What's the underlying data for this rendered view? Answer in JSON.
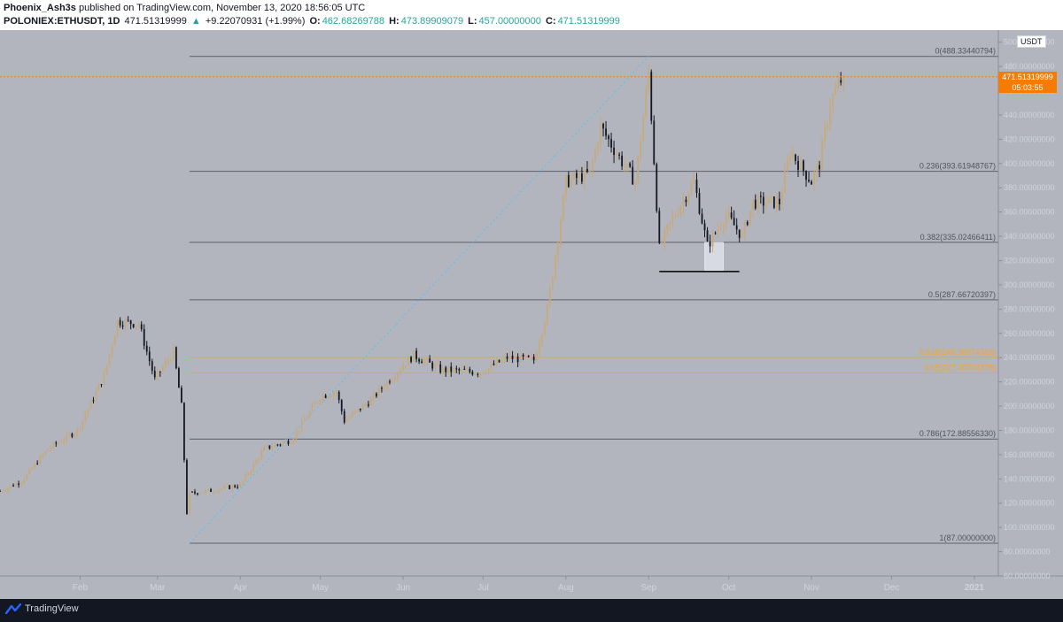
{
  "header": {
    "author": "Phoenix_Ash3s",
    "published_text": "published on TradingView.com, November 13, 2020 18:56:05 UTC",
    "symbol": "POLONIEX:ETHUSDT, 1D",
    "last": "471.51319999",
    "change": "+9.22070931 (+1.99%)",
    "open_label": "O:",
    "open": "462.68269788",
    "high_label": "H:",
    "high": "473.89909079",
    "low_label": "L:",
    "low": "457.00000000",
    "close_label": "C:",
    "close": "471.51319999"
  },
  "currency": "USDT",
  "price_tag": {
    "price": "471.51319999",
    "countdown": "05:03:55"
  },
  "footer": {
    "brand": "TradingView"
  },
  "colors": {
    "background": "#b2b5be",
    "up": "#c8a97a",
    "down": "#131722",
    "fib_line": "#5d606b",
    "fib_golden": "#f5a623",
    "price_line": "#f57c00",
    "trend_line": "#4fc3f7"
  },
  "chart_data": {
    "type": "candlestick",
    "y_axis": {
      "ylim": [
        60,
        510
      ],
      "ticks": [
        "500.00000000",
        "480.00000000",
        "460.00000000",
        "440.00000000",
        "420.00000000",
        "400.00000000",
        "380.00000000",
        "360.00000000",
        "340.00000000",
        "320.00000000",
        "300.00000000",
        "280.00000000",
        "260.00000000",
        "240.00000000",
        "220.00000000",
        "200.00000000",
        "180.00000000",
        "160.00000000",
        "140.00000000",
        "120.00000000",
        "100.00000000",
        "80.00000000",
        "60.00000000"
      ]
    },
    "x_axis": {
      "ticks": [
        {
          "label": "Feb",
          "date": "2020-02-01"
        },
        {
          "label": "Mar",
          "date": "2020-03-01"
        },
        {
          "label": "Apr",
          "date": "2020-04-01"
        },
        {
          "label": "May",
          "date": "2020-05-01"
        },
        {
          "label": "Jun",
          "date": "2020-06-01"
        },
        {
          "label": "Jul",
          "date": "2020-07-01"
        },
        {
          "label": "Aug",
          "date": "2020-08-01"
        },
        {
          "label": "Sep",
          "date": "2020-09-01"
        },
        {
          "label": "Oct",
          "date": "2020-10-01"
        },
        {
          "label": "Nov",
          "date": "2020-11-01"
        },
        {
          "label": "Dec",
          "date": "2020-12-01"
        },
        {
          "label": "2021",
          "date": "2021-01-01"
        }
      ],
      "xlim": [
        "2020-01-02",
        "2021-01-10"
      ]
    },
    "fib_levels": [
      {
        "label": "0(488.33440794)",
        "value": 488.33440794,
        "golden": false
      },
      {
        "label": "0.236(393.61948767)",
        "value": 393.61948767,
        "golden": false
      },
      {
        "label": "0.382(335.02466411)",
        "value": 335.02466411,
        "golden": false
      },
      {
        "label": "0.5(287.66720397)",
        "value": 287.66720397,
        "golden": false
      },
      {
        "label": "0.618(240.30974383)",
        "value": 240.30974383,
        "golden": true
      },
      {
        "label": "0.65(227.46704378)",
        "value": 227.46704378,
        "golden": true
      },
      {
        "label": "0.786(172.88556330)",
        "value": 172.8855633,
        "golden": false
      },
      {
        "label": "1(87.00000000)",
        "value": 87.0,
        "golden": false
      }
    ],
    "fib_range": {
      "start_date": "2020-03-13",
      "end_date": "2021-01-10"
    },
    "trend_line": {
      "from": [
        "2020-03-13",
        87
      ],
      "to": [
        "2020-09-01",
        488.33
      ]
    },
    "support_line": {
      "from": [
        "2020-09-05",
        311
      ],
      "to": [
        "2020-10-05",
        311
      ]
    },
    "highlight_box": {
      "from": [
        "2020-09-22",
        312
      ],
      "to": [
        "2020-09-29",
        335
      ]
    },
    "last_price": 471.51319999,
    "keypoints": [
      [
        "2020-01-02",
        130
      ],
      [
        "2020-01-10",
        138
      ],
      [
        "2020-01-20",
        165
      ],
      [
        "2020-01-31",
        180
      ],
      [
        "2020-02-10",
        225
      ],
      [
        "2020-02-15",
        270
      ],
      [
        "2020-02-23",
        268
      ],
      [
        "2020-02-29",
        222
      ],
      [
        "2020-03-07",
        245
      ],
      [
        "2020-03-10",
        200
      ],
      [
        "2020-03-12",
        112
      ],
      [
        "2020-03-13",
        128
      ],
      [
        "2020-03-20",
        130
      ],
      [
        "2020-04-01",
        135
      ],
      [
        "2020-04-10",
        165
      ],
      [
        "2020-04-20",
        172
      ],
      [
        "2020-05-01",
        208
      ],
      [
        "2020-05-07",
        212
      ],
      [
        "2020-05-10",
        188
      ],
      [
        "2020-05-20",
        205
      ],
      [
        "2020-05-31",
        232
      ],
      [
        "2020-06-05",
        242
      ],
      [
        "2020-06-15",
        230
      ],
      [
        "2020-06-30",
        228
      ],
      [
        "2020-07-10",
        240
      ],
      [
        "2020-07-20",
        238
      ],
      [
        "2020-07-25",
        280
      ],
      [
        "2020-08-01",
        385
      ],
      [
        "2020-08-10",
        392
      ],
      [
        "2020-08-14",
        430
      ],
      [
        "2020-08-21",
        405
      ],
      [
        "2020-08-27",
        385
      ],
      [
        "2020-09-01",
        475
      ],
      [
        "2020-09-05",
        330
      ],
      [
        "2020-09-10",
        355
      ],
      [
        "2020-09-18",
        385
      ],
      [
        "2020-09-23",
        332
      ],
      [
        "2020-09-30",
        358
      ],
      [
        "2020-10-06",
        340
      ],
      [
        "2020-10-10",
        368
      ],
      [
        "2020-10-20",
        368
      ],
      [
        "2020-10-24",
        410
      ],
      [
        "2020-11-01",
        385
      ],
      [
        "2020-11-04",
        400
      ],
      [
        "2020-11-08",
        450
      ],
      [
        "2020-11-11",
        465
      ],
      [
        "2020-11-13",
        471.5
      ]
    ]
  }
}
